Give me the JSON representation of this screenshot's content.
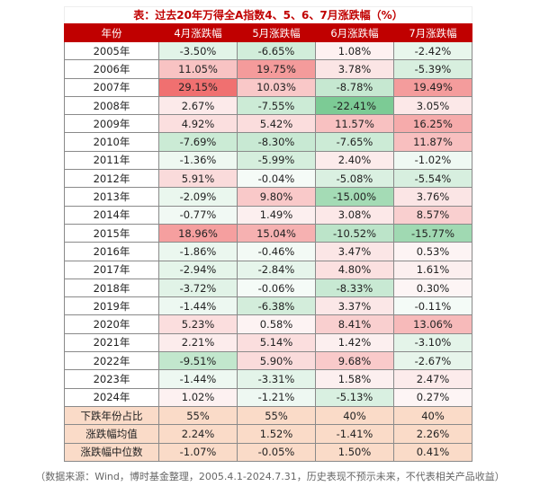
{
  "title": "表：过去20年万得全A指数4、5、6、7月涨跌幅（%）",
  "headers": [
    "年份",
    "4月涨跌幅",
    "5月涨跌幅",
    "6月涨跌幅",
    "7月涨跌幅"
  ],
  "rows": [
    [
      "2005年",
      "-3.50%",
      "-6.65%",
      "1.08%",
      "-2.42%"
    ],
    [
      "2006年",
      "11.05%",
      "19.75%",
      "3.78%",
      "-5.39%"
    ],
    [
      "2007年",
      "29.15%",
      "10.03%",
      "-8.78%",
      "19.49%"
    ],
    [
      "2008年",
      "2.67%",
      "-7.55%",
      "-22.41%",
      "3.05%"
    ],
    [
      "2009年",
      "4.92%",
      "5.42%",
      "11.57%",
      "16.25%"
    ],
    [
      "2010年",
      "-7.69%",
      "-8.30%",
      "-7.65%",
      "11.87%"
    ],
    [
      "2011年",
      "-1.36%",
      "-5.99%",
      "2.40%",
      "-1.02%"
    ],
    [
      "2012年",
      "5.91%",
      "-0.04%",
      "-5.08%",
      "-5.54%"
    ],
    [
      "2013年",
      "-2.09%",
      "9.80%",
      "-15.00%",
      "3.76%"
    ],
    [
      "2014年",
      "-0.77%",
      "1.49%",
      "3.08%",
      "8.57%"
    ],
    [
      "2015年",
      "18.96%",
      "15.04%",
      "-10.52%",
      "-15.77%"
    ],
    [
      "2016年",
      "-1.86%",
      "-0.46%",
      "3.47%",
      "0.53%"
    ],
    [
      "2017年",
      "-2.94%",
      "-2.84%",
      "4.80%",
      "1.61%"
    ],
    [
      "2018年",
      "-3.72%",
      "-0.06%",
      "-8.33%",
      "0.30%"
    ],
    [
      "2019年",
      "-1.44%",
      "-6.38%",
      "3.37%",
      "-0.11%"
    ],
    [
      "2020年",
      "5.23%",
      "0.58%",
      "8.41%",
      "13.06%"
    ],
    [
      "2021年",
      "2.21%",
      "5.14%",
      "1.42%",
      "-3.10%"
    ],
    [
      "2022年",
      "-9.51%",
      "5.90%",
      "9.68%",
      "-2.67%"
    ],
    [
      "2023年",
      "-1.44%",
      "-3.31%",
      "1.58%",
      "2.47%"
    ],
    [
      "2024年",
      "1.02%",
      "-1.21%",
      "-5.13%",
      "0.27%"
    ]
  ],
  "summary": [
    [
      "下跌年份占比",
      "55%",
      "55%",
      "40%",
      "40%"
    ],
    [
      "涨跌幅均值",
      "2.24%",
      "1.52%",
      "-1.41%",
      "2.26%"
    ],
    [
      "涨跌幅中位数",
      "-1.07%",
      "-0.05%",
      "1.50%",
      "0.41%"
    ]
  ],
  "source": "（数据来源：Wind，博时基金整理，2005.4.1-2024.7.31，历史表现不预示未来，不代表相关产品收益）",
  "colors": {
    "header": "#c00000",
    "positive_max": "#f07070",
    "negative_max": "#7ccb95",
    "summary": "#fadbc8"
  }
}
